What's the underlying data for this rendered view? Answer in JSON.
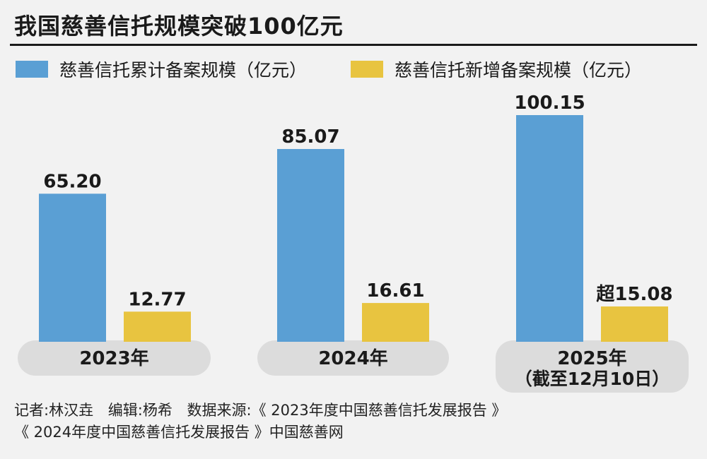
{
  "title": "我国慈善信托规模突破100亿元",
  "chart_data": {
    "type": "bar",
    "categories": [
      "2023年",
      "2024年",
      "2025年"
    ],
    "category_notes": [
      "",
      "",
      "（截至12月10日）"
    ],
    "series": [
      {
        "name": "慈善信托累计备案规模（亿元）",
        "color": "#5a9fd4",
        "values": [
          65.2,
          85.07,
          100.15
        ],
        "labels": [
          "65.20",
          "85.07",
          "100.15"
        ]
      },
      {
        "name": "慈善信托新增备案规模（亿元）",
        "color": "#e8c440",
        "values": [
          12.77,
          16.61,
          15.08
        ],
        "labels": [
          "12.77",
          "16.61",
          "超15.08"
        ]
      }
    ],
    "ylim": [
      0,
      100.15
    ],
    "grid": false,
    "legend": "top"
  },
  "footer": {
    "reporter": "记者:林汉垚",
    "editor": "编辑:杨希",
    "source_line1": "数据来源:《 2023年度中国慈善信托发展报告 》",
    "source_line2": "《 2024年度中国慈善信托发展报告 》中国慈善网"
  }
}
